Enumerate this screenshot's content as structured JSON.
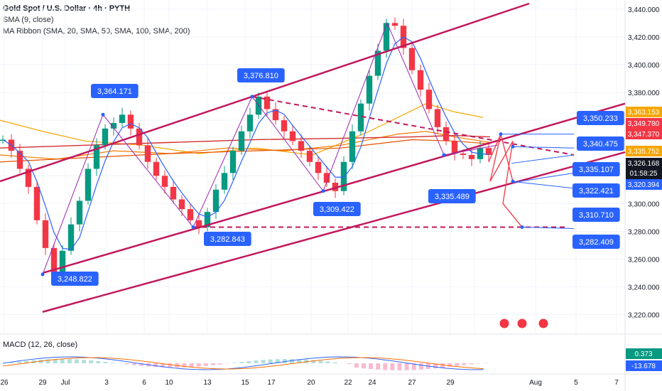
{
  "header": {
    "title": "Gold Spot / U.S. Dollar · 4h · PYTH",
    "indicator_1": "SMA (9, close)",
    "indicator_2": "MA Ribbon (SMA, 20, SMA, 50, SMA, 100, SMA, 200)"
  },
  "macd_header": "MACD (12, 26, close)",
  "chart_data": {
    "type": "line",
    "title": "Gold Spot / U.S. Dollar · 4h · PYTH",
    "xlabel": "",
    "ylabel": "",
    "x_ticks": [
      "26",
      "29",
      "Jul",
      "3",
      "6",
      "10",
      "13",
      "15",
      "17",
      "20",
      "22",
      "24",
      "27",
      "29",
      "Aug",
      "5",
      "7"
    ],
    "y_ticks": [
      3220,
      3240,
      3260,
      3280,
      3300,
      3320,
      3340,
      3360,
      3380,
      3400,
      3420,
      3440
    ],
    "ylim": [
      3206,
      3444
    ],
    "grid": true,
    "series": [
      {
        "values": [
          3346,
          3338,
          3325,
          3312,
          3288,
          3268,
          3249,
          3266,
          3285,
          3302,
          3325,
          3342,
          3354,
          3358,
          3364,
          3354,
          3342,
          3330,
          3320,
          3312,
          3303,
          3296,
          3288,
          3283,
          3294,
          3310,
          3322,
          3338,
          3352,
          3364,
          3377,
          3368,
          3360,
          3352,
          3345,
          3338,
          3330,
          3322,
          3315,
          3309,
          3330,
          3352,
          3372,
          3392,
          3410,
          3430,
          3428,
          3412,
          3396,
          3382,
          3368,
          3355,
          3345,
          3336,
          3335,
          3332,
          3340,
          3335
        ]
      }
    ],
    "price_labels": [
      {
        "text": "3,364.171",
        "color": "#2962ff"
      },
      {
        "text": "3,376.810",
        "color": "#2962ff"
      },
      {
        "text": "3,248.822",
        "color": "#2962ff"
      },
      {
        "text": "3,282.843",
        "color": "#2962ff"
      },
      {
        "text": "3,309.422",
        "color": "#2962ff"
      },
      {
        "text": "3,335.489",
        "color": "#2962ff"
      },
      {
        "text": "3,350.233",
        "color": "#2962ff"
      },
      {
        "text": "3,340.475",
        "color": "#2962ff"
      },
      {
        "text": "3,335.107",
        "color": "#2962ff"
      },
      {
        "text": "3,322.421",
        "color": "#2962ff"
      },
      {
        "text": "3,310.710",
        "color": "#2962ff"
      },
      {
        "text": "3,282.409",
        "color": "#2962ff"
      }
    ],
    "axis_badges": [
      {
        "text": "3,363.153",
        "color": "#f7a600"
      },
      {
        "text": "3,349.780",
        "color": "#f23645"
      },
      {
        "text": "3,347.370",
        "color": "#f23645"
      },
      {
        "text": "3,335.752",
        "color": "#f7a600"
      },
      {
        "text": "3,326.168",
        "sub": "01:58:25",
        "color": "#131722"
      },
      {
        "text": "3,320.394",
        "color": "#2962ff"
      }
    ],
    "macd": {
      "values_labels": [
        {
          "text": "0.373",
          "color": "#089981"
        },
        {
          "text": "-13.678",
          "color": "#2962ff"
        }
      ]
    },
    "colors": {
      "channel": "#c2185b",
      "candle_up": "#089981",
      "candle_down": "#f23645",
      "sma": "#2962ff",
      "ma20": "#f7a600",
      "ma50": "#f57c00",
      "ma100": "#e65100",
      "ma200": "#d32f2f"
    }
  }
}
